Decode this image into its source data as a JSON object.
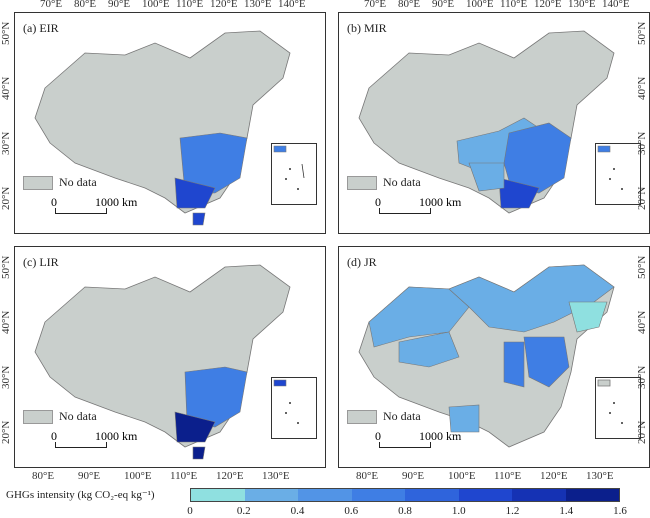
{
  "top_lon_labels": [
    "70°E",
    "80°E",
    "90°E",
    "100°E",
    "110°E",
    "120°E",
    "130°E",
    "140°E"
  ],
  "bottom_lon_labels": [
    "80°E",
    "90°E",
    "100°E",
    "110°E",
    "120°E",
    "130°E"
  ],
  "lat_labels": [
    "20°N",
    "30°N",
    "40°N",
    "50°N"
  ],
  "panels": [
    {
      "id": "a",
      "title": "(a) EIR"
    },
    {
      "id": "b",
      "title": "(b) MIR"
    },
    {
      "id": "c",
      "title": "(c) LIR"
    },
    {
      "id": "d",
      "title": "(d) JR"
    }
  ],
  "legend": {
    "nodata": "No data",
    "scale_zero": "0",
    "scale_dist": "1000 km"
  },
  "colorbar": {
    "title": "GHGs intensity (kg CO₂-eq kg⁻¹)",
    "ticks": [
      "0",
      "0.2",
      "0.4",
      "0.6",
      "0.8",
      "1.0",
      "1.2",
      "1.4",
      "1.6"
    ],
    "colors": [
      "#8fe0e0",
      "#6aaee6",
      "#5294e6",
      "#3f7ee4",
      "#2f64dc",
      "#1f46cf",
      "#1532b4",
      "#0b1f8c"
    ]
  },
  "colors": {
    "nodata": "#c9cfcc",
    "border": "#777777"
  }
}
